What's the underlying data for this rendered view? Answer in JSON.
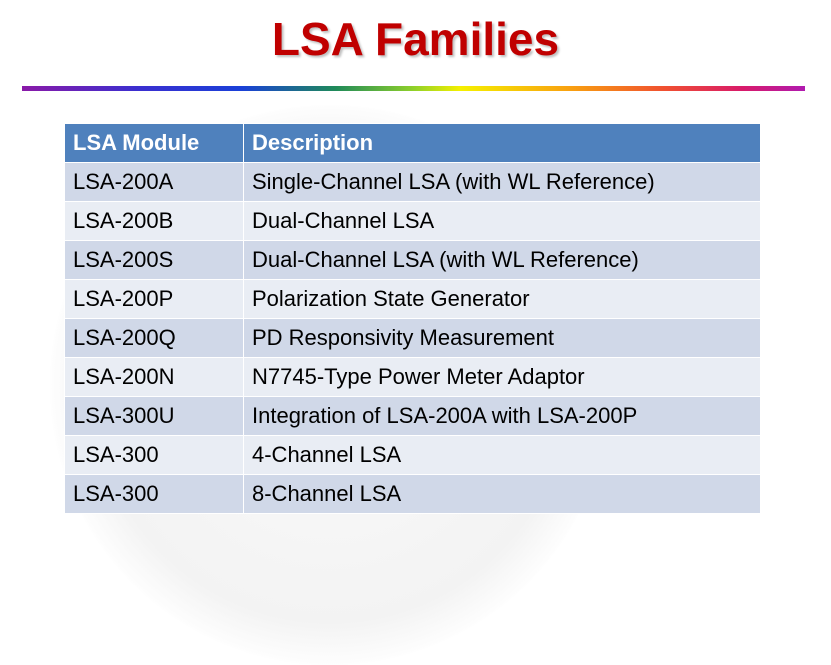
{
  "title": "LSA Families",
  "table": {
    "headers": [
      "LSA Module",
      "Description"
    ],
    "rows": [
      [
        "LSA-200A",
        "Single-Channel LSA (with WL Reference)"
      ],
      [
        "LSA-200B",
        "Dual-Channel LSA"
      ],
      [
        "LSA-200S",
        "Dual-Channel LSA (with WL Reference)"
      ],
      [
        "LSA-200P",
        "Polarization State Generator"
      ],
      [
        "LSA-200Q",
        "PD Responsivity Measurement"
      ],
      [
        "LSA-200N",
        "N7745-Type Power Meter Adaptor"
      ],
      [
        "LSA-300U",
        "Integration of LSA-200A with LSA-200P"
      ],
      [
        "LSA-300",
        "4-Channel LSA"
      ],
      [
        "LSA-300",
        "8-Channel LSA"
      ]
    ]
  },
  "colors": {
    "title": "#c00000",
    "header": "#4f81bd",
    "row_odd": "#d0d8e8",
    "row_even": "#e9edf4"
  }
}
